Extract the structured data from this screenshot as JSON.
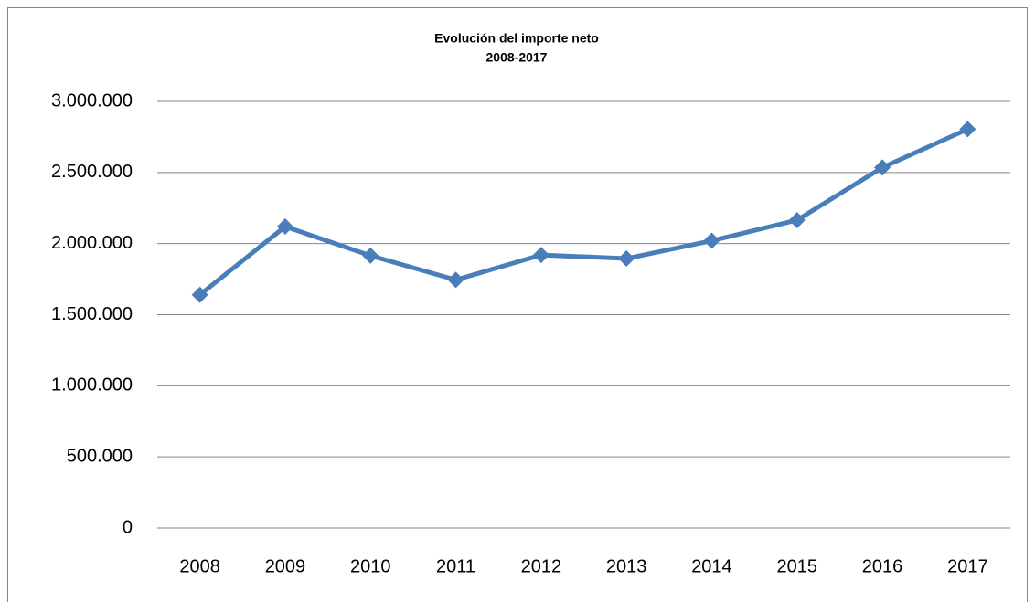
{
  "chart_data": {
    "type": "line",
    "title": "Evolución del importe neto",
    "subtitle": "2008-2017",
    "categories": [
      "2008",
      "2009",
      "2010",
      "2011",
      "2012",
      "2013",
      "2014",
      "2015",
      "2016",
      "2017"
    ],
    "series": [
      {
        "color": "#4a7ebb",
        "values": [
          1640000,
          2120000,
          1915000,
          1745000,
          1920000,
          1895000,
          2020000,
          2165000,
          2535000,
          2805000
        ]
      }
    ],
    "ylim": [
      0,
      3000000
    ],
    "yticks": [
      0,
      {
        "value": 500000,
        "label": "500.000"
      },
      {
        "value": 1000000,
        "label": "1.000.000"
      },
      {
        "value": 1500000,
        "label": "1.500.000"
      },
      {
        "value": 2000000,
        "label": "2.000.000"
      },
      {
        "value": 2500000,
        "label": "2.500.000"
      },
      {
        "value": 3000000,
        "label": "3.000.000"
      }
    ],
    "grid": true
  }
}
